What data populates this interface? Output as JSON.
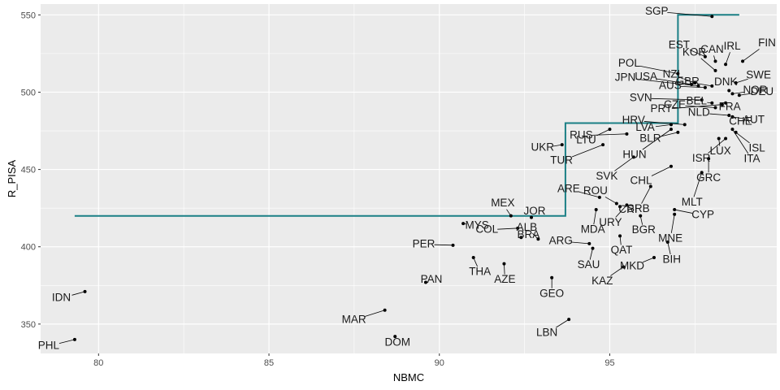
{
  "chart_data": {
    "type": "scatter",
    "xlabel": "NBMC",
    "ylabel": "R_PISA",
    "xlim": [
      78.3,
      99.9
    ],
    "ylim": [
      331,
      557
    ],
    "xticks": [
      80,
      85,
      90,
      95
    ],
    "xtick_labels": [
      "80",
      "85",
      "90",
      "95"
    ],
    "yticks": [
      350,
      400,
      450,
      500,
      550
    ],
    "ytick_labels": [
      "350",
      "400",
      "450",
      "500",
      "550"
    ],
    "grid": true,
    "legend": "none",
    "colors": {
      "panel": "#ebebeb",
      "grid_major": "#ffffff",
      "point": "#000000",
      "step_line": "#1a7f85",
      "leader": "#000000"
    },
    "step_line": {
      "x": [
        79.3,
        93.7,
        93.7,
        97.0,
        97.0,
        98.8
      ],
      "y": [
        420,
        420,
        480,
        480,
        550,
        550
      ]
    },
    "points": [
      {
        "label": "SGP",
        "x": 98.0,
        "y": 549
      },
      {
        "label": "KOR",
        "x": 98.1,
        "y": 514
      },
      {
        "label": "IRL",
        "x": 98.4,
        "y": 518
      },
      {
        "label": "FIN",
        "x": 98.9,
        "y": 520
      },
      {
        "label": "CAN",
        "x": 98.1,
        "y": 520
      },
      {
        "label": "SWE",
        "x": 98.7,
        "y": 506
      },
      {
        "label": "EST",
        "x": 97.8,
        "y": 523
      },
      {
        "label": "NOR",
        "x": 98.6,
        "y": 499
      },
      {
        "label": "POL",
        "x": 97.0,
        "y": 512
      },
      {
        "label": "GBR",
        "x": 98.0,
        "y": 504
      },
      {
        "label": "DNK",
        "x": 98.5,
        "y": 501
      },
      {
        "label": "JPN",
        "x": 97.6,
        "y": 504
      },
      {
        "label": "USA",
        "x": 97.4,
        "y": 505
      },
      {
        "label": "NZL",
        "x": 97.5,
        "y": 506
      },
      {
        "label": "DEU",
        "x": 98.8,
        "y": 498
      },
      {
        "label": "SVN",
        "x": 97.7,
        "y": 495
      },
      {
        "label": "AUS",
        "x": 97.8,
        "y": 503
      },
      {
        "label": "BEL",
        "x": 98.0,
        "y": 493
      },
      {
        "label": "PRT",
        "x": 98.3,
        "y": 492
      },
      {
        "label": "FRA",
        "x": 98.4,
        "y": 493
      },
      {
        "label": "AUT",
        "x": 98.6,
        "y": 484
      },
      {
        "label": "CZE",
        "x": 98.1,
        "y": 490
      },
      {
        "label": "HRV",
        "x": 97.2,
        "y": 479
      },
      {
        "label": "LVA",
        "x": 96.8,
        "y": 479
      },
      {
        "label": "NLD",
        "x": 98.5,
        "y": 485
      },
      {
        "label": "CHE",
        "x": 98.6,
        "y": 484
      },
      {
        "label": "RUS",
        "x": 95.5,
        "y": 473
      },
      {
        "label": "BLR",
        "x": 97.0,
        "y": 474
      },
      {
        "label": "ISL",
        "x": 98.7,
        "y": 474
      },
      {
        "label": "UKR",
        "x": 93.6,
        "y": 466
      },
      {
        "label": "LUX",
        "x": 98.2,
        "y": 470
      },
      {
        "label": "LTU",
        "x": 95.0,
        "y": 476
      },
      {
        "label": "ITA",
        "x": 98.6,
        "y": 476
      },
      {
        "label": "TUR",
        "x": 94.8,
        "y": 466
      },
      {
        "label": "HUN",
        "x": 96.8,
        "y": 476
      },
      {
        "label": "ISR",
        "x": 98.4,
        "y": 470
      },
      {
        "label": "SVK",
        "x": 95.7,
        "y": 458
      },
      {
        "label": "CHL",
        "x": 96.8,
        "y": 452
      },
      {
        "label": "GRC",
        "x": 97.9,
        "y": 457
      },
      {
        "label": "MLT",
        "x": 97.7,
        "y": 448
      },
      {
        "label": "SRB",
        "x": 96.2,
        "y": 439
      },
      {
        "label": "ARE",
        "x": 94.7,
        "y": 432
      },
      {
        "label": "ROU",
        "x": 95.2,
        "y": 428
      },
      {
        "label": "CRI",
        "x": 95.3,
        "y": 426
      },
      {
        "label": "CYP",
        "x": 96.9,
        "y": 424
      },
      {
        "label": "MEX",
        "x": 92.1,
        "y": 420
      },
      {
        "label": "JOR",
        "x": 92.7,
        "y": 419
      },
      {
        "label": "MDA",
        "x": 94.6,
        "y": 424
      },
      {
        "label": "URY",
        "x": 95.5,
        "y": 427
      },
      {
        "label": "MYS",
        "x": 90.7,
        "y": 415
      },
      {
        "label": "BGR",
        "x": 95.9,
        "y": 420
      },
      {
        "label": "MNE",
        "x": 96.9,
        "y": 421
      },
      {
        "label": "COL",
        "x": 92.3,
        "y": 412
      },
      {
        "label": "BRA",
        "x": 92.4,
        "y": 406
      },
      {
        "label": "PER",
        "x": 90.4,
        "y": 401
      },
      {
        "label": "ARG",
        "x": 94.4,
        "y": 402
      },
      {
        "label": "QAT",
        "x": 95.3,
        "y": 407
      },
      {
        "label": "BIH",
        "x": 96.7,
        "y": 403
      },
      {
        "label": "ALB",
        "x": 92.9,
        "y": 405
      },
      {
        "label": "SAU",
        "x": 94.5,
        "y": 399
      },
      {
        "label": "THA",
        "x": 91.0,
        "y": 393
      },
      {
        "label": "MKD",
        "x": 96.3,
        "y": 393
      },
      {
        "label": "AZE",
        "x": 91.9,
        "y": 389
      },
      {
        "label": "KAZ",
        "x": 95.4,
        "y": 387
      },
      {
        "label": "PAN",
        "x": 89.6,
        "y": 377
      },
      {
        "label": "GEO",
        "x": 93.3,
        "y": 380
      },
      {
        "label": "IDN",
        "x": 79.6,
        "y": 371
      },
      {
        "label": "MAR",
        "x": 88.4,
        "y": 359
      },
      {
        "label": "LBN",
        "x": 93.8,
        "y": 353
      },
      {
        "label": "DOM",
        "x": 88.7,
        "y": 342
      },
      {
        "label": "PHL",
        "x": 79.3,
        "y": 340
      }
    ]
  }
}
